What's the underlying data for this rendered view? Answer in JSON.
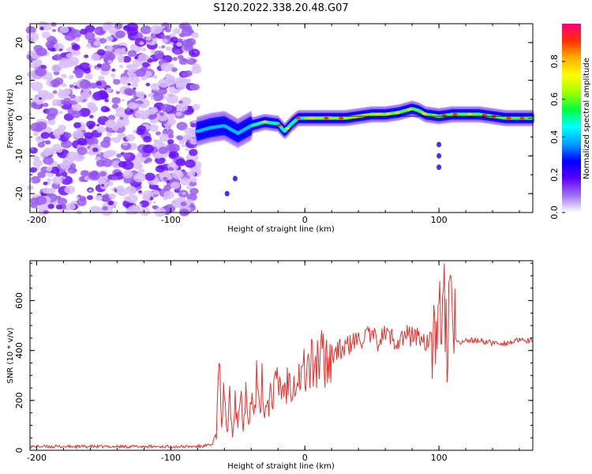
{
  "title": "S120.2022.338.20.48.G07",
  "chart_data": [
    {
      "type": "heatmap",
      "xlabel": "Height of straight line (km)",
      "ylabel": "Frequency (Hz)",
      "xlim": [
        -205,
        170
      ],
      "ylim": [
        -25,
        25
      ],
      "x_ticks": [
        -200,
        -100,
        0,
        100
      ],
      "y_ticks": [
        -20,
        -10,
        0,
        10,
        20
      ],
      "colorbar": {
        "label": "Normalized spectral amplitude",
        "range": [
          0,
          1
        ],
        "ticks": [
          "0.0",
          "0.2",
          "0.4",
          "0.6",
          "0.8"
        ],
        "colors": [
          "#ffffff",
          "#a070f0",
          "#5a00ff",
          "#0000ff",
          "#00a0ff",
          "#00ffff",
          "#00ff40",
          "#a0ff00",
          "#ffff00",
          "#ffb000",
          "#ff3000",
          "#ff0080"
        ]
      },
      "signal_track": {
        "x": [
          -80,
          -70,
          -60,
          -50,
          -40,
          -30,
          -20,
          -15,
          -10,
          -5,
          0,
          10,
          20,
          30,
          40,
          50,
          60,
          70,
          80,
          85,
          90,
          100,
          110,
          120,
          130,
          140,
          150,
          160,
          170
        ],
        "freq": [
          -3.5,
          -2.5,
          -2,
          -4,
          -2,
          -1,
          -1.5,
          -3.5,
          -1.5,
          0,
          0,
          0,
          0,
          0,
          0.5,
          1,
          1,
          1.5,
          2.5,
          2,
          1,
          0.5,
          1,
          1,
          1,
          0.5,
          0,
          0,
          0
        ]
      },
      "noise_region_x": [
        -205,
        -80
      ]
    },
    {
      "type": "line",
      "xlabel": "Height of straight line (km)",
      "ylabel": "SNR (10 * v/v)",
      "xlim": [
        -205,
        170
      ],
      "ylim": [
        0,
        760
      ],
      "x_ticks": [
        -200,
        -100,
        0,
        100
      ],
      "y_ticks": [
        0,
        200,
        400,
        600
      ],
      "color": "#e8302c",
      "series": [
        {
          "x": [
            -205,
            -180,
            -160,
            -140,
            -120,
            -100,
            -80,
            -70,
            -66,
            -64,
            -62,
            -60,
            -58,
            -56,
            -54,
            -52,
            -50,
            -48,
            -46,
            -44,
            -42,
            -40,
            -38,
            -36,
            -34,
            -32,
            -30,
            -25,
            -20,
            -15,
            -10,
            -5,
            0,
            5,
            10,
            15,
            20,
            25,
            30,
            35,
            40,
            45,
            50,
            55,
            60,
            65,
            70,
            75,
            80,
            85,
            90,
            95,
            98,
            100,
            102,
            104,
            106,
            108,
            110,
            115,
            120,
            130,
            140,
            150,
            160,
            170
          ],
          "y": [
            15,
            15,
            15,
            15,
            15,
            15,
            15,
            20,
            60,
            330,
            120,
            250,
            60,
            200,
            80,
            230,
            100,
            240,
            110,
            250,
            140,
            220,
            130,
            280,
            150,
            260,
            170,
            230,
            260,
            250,
            300,
            290,
            320,
            340,
            360,
            370,
            390,
            400,
            410,
            430,
            440,
            460,
            450,
            440,
            470,
            450,
            440,
            460,
            460,
            455,
            440,
            430,
            520,
            600,
            280,
            700,
            380,
            720,
            450,
            430,
            440,
            440,
            430,
            430,
            440,
            440
          ]
        }
      ]
    }
  ]
}
